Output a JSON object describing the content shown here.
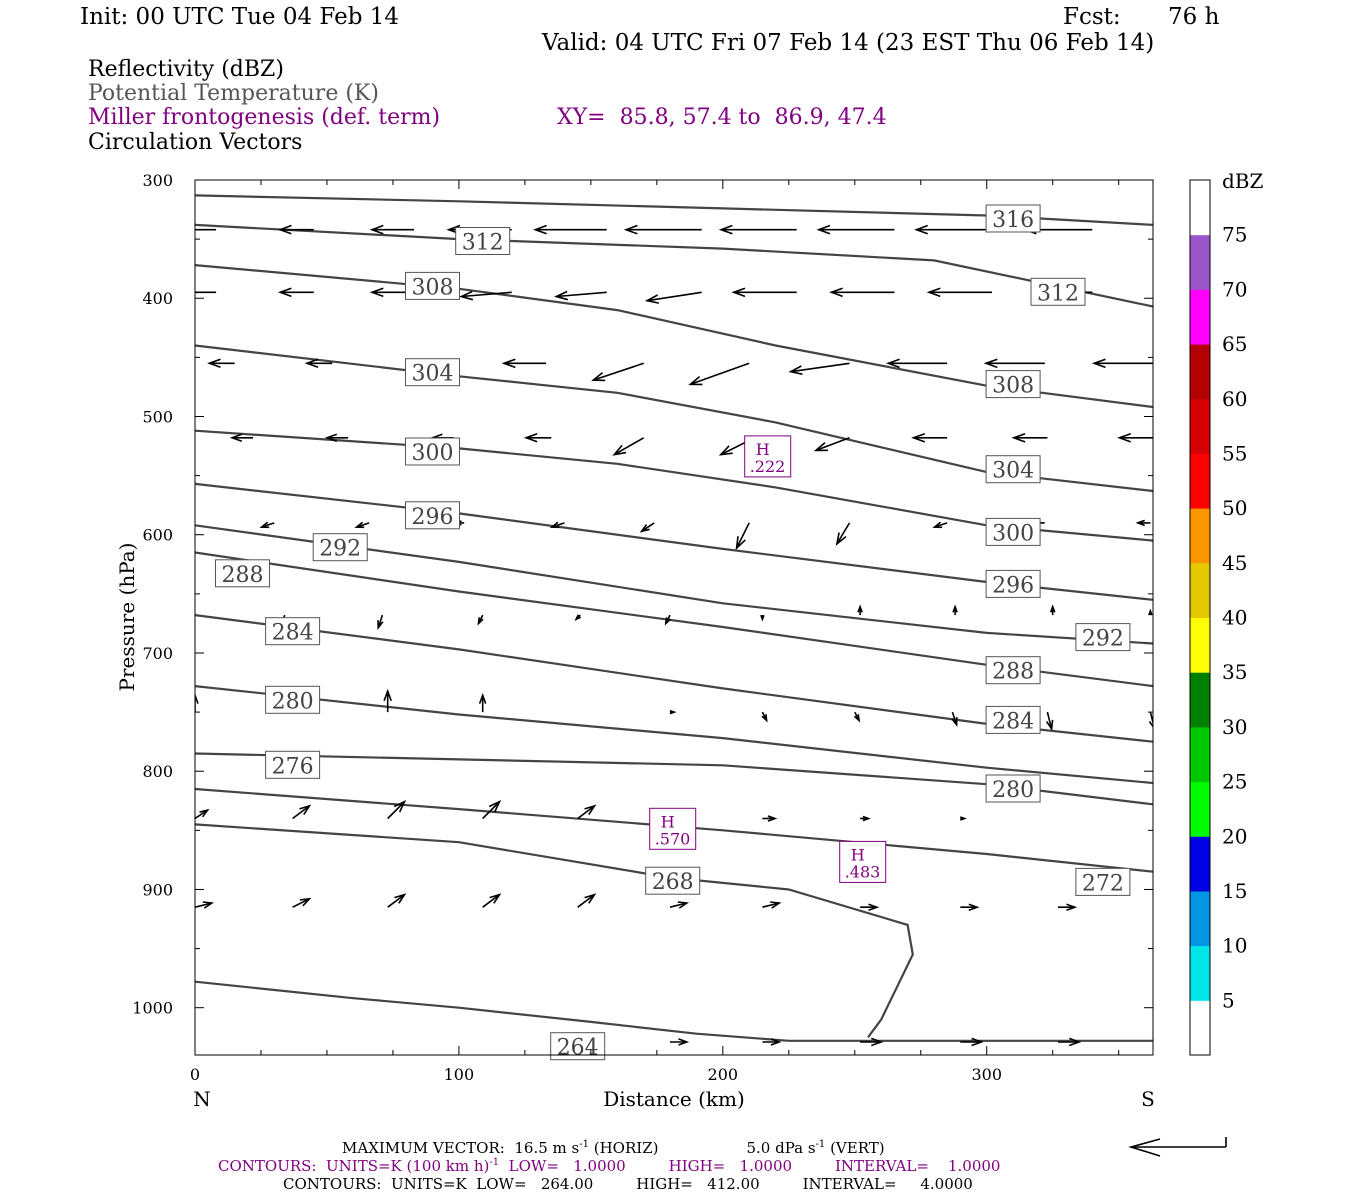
{
  "header": {
    "init": "Init: 00 UTC Tue 04 Feb 14",
    "fcst_label": "Fcst:",
    "fcst_value": "76 h",
    "valid": "Valid: 04 UTC Fri 07 Feb 14 (23 EST Thu 06 Feb 14)"
  },
  "legend": {
    "reflectivity": "Reflectivity (dBZ)",
    "theta": "Potential Temperature (K)",
    "frontogenesis": "Miller frontogenesis (def. term)",
    "xy": "XY=  85.8, 57.4 to  86.9, 47.4",
    "vectors": "Circulation Vectors"
  },
  "colors": {
    "theta_contour": "#444444",
    "frontogenesis": "#800080",
    "vectors": "#000000"
  },
  "colorbar": {
    "title": "dBZ",
    "labels": [
      "5",
      "10",
      "15",
      "20",
      "25",
      "30",
      "35",
      "40",
      "45",
      "50",
      "55",
      "60",
      "65",
      "70",
      "75"
    ],
    "colors": [
      "#ffffff",
      "#00e6e6",
      "#0096e6",
      "#0000e6",
      "#00fa00",
      "#00c800",
      "#008000",
      "#ffff00",
      "#e6c800",
      "#ff9600",
      "#ff0000",
      "#d70000",
      "#b40000",
      "#ff00ff",
      "#9955c9",
      "#ffffff"
    ]
  },
  "chart_data": {
    "type": "line",
    "xlabel": "Distance (km)",
    "ylabel": "Pressure (hPa)",
    "xlim": [
      0,
      363
    ],
    "ylim": [
      1040,
      300
    ],
    "x_ticks": [
      "0",
      "100",
      "200",
      "300"
    ],
    "y_ticks": [
      "300",
      "400",
      "500",
      "600",
      "700",
      "800",
      "900",
      "1000"
    ],
    "x_end_labels": {
      "left": "N",
      "right": "S"
    },
    "theta_contours": [
      {
        "label": "316",
        "x": [
          0,
          100,
          200,
          300,
          363
        ],
        "p": [
          313,
          318,
          324,
          330,
          338
        ]
      },
      {
        "label": "312",
        "x": [
          0,
          100,
          200,
          280,
          363
        ],
        "p": [
          338,
          350,
          358,
          368,
          407
        ]
      },
      {
        "label": "308",
        "x": [
          0,
          100,
          160,
          220,
          300,
          363
        ],
        "p": [
          372,
          392,
          410,
          440,
          474,
          492
        ]
      },
      {
        "label": "304",
        "x": [
          0,
          100,
          160,
          220,
          300,
          363
        ],
        "p": [
          440,
          466,
          480,
          505,
          547,
          563
        ]
      },
      {
        "label": "300",
        "x": [
          0,
          100,
          160,
          220,
          300,
          363
        ],
        "p": [
          512,
          527,
          540,
          560,
          592,
          605
        ]
      },
      {
        "label": "296",
        "x": [
          0,
          100,
          200,
          300,
          363
        ],
        "p": [
          557,
          582,
          612,
          640,
          655
        ]
      },
      {
        "label": "292",
        "x": [
          0,
          100,
          200,
          300,
          363
        ],
        "p": [
          592,
          623,
          658,
          683,
          692
        ]
      },
      {
        "label": "288",
        "x": [
          0,
          100,
          200,
          300,
          363
        ],
        "p": [
          615,
          648,
          678,
          710,
          728
        ]
      },
      {
        "label": "284",
        "x": [
          0,
          100,
          200,
          300,
          363
        ],
        "p": [
          668,
          697,
          730,
          760,
          775
        ]
      },
      {
        "label": "280",
        "x": [
          0,
          100,
          200,
          300,
          363
        ],
        "p": [
          728,
          752,
          772,
          797,
          810
        ]
      },
      {
        "label": "276",
        "x": [
          0,
          100,
          200,
          300,
          363
        ],
        "p": [
          785,
          790,
          795,
          811,
          828
        ]
      },
      {
        "label": "272",
        "x": [
          0,
          100,
          200,
          300,
          363
        ],
        "p": [
          815,
          832,
          850,
          870,
          885
        ]
      },
      {
        "label": "268",
        "x": [
          0,
          100,
          180,
          225,
          270,
          272,
          260,
          255
        ],
        "p": [
          845,
          860,
          890,
          900,
          930,
          955,
          1010,
          1025
        ]
      },
      {
        "label": "264",
        "x": [
          0,
          60,
          100,
          150,
          190,
          225,
          363
        ],
        "p": [
          978,
          992,
          1000,
          1012,
          1022,
          1028,
          1028
        ]
      }
    ],
    "contour_labels": [
      {
        "text": "316",
        "x": 310,
        "p": 333
      },
      {
        "text": "312",
        "x": 109,
        "p": 352
      },
      {
        "text": "312",
        "x": 327,
        "p": 395
      },
      {
        "text": "308",
        "x": 90,
        "p": 390
      },
      {
        "text": "308",
        "x": 310,
        "p": 473
      },
      {
        "text": "304",
        "x": 90,
        "p": 463
      },
      {
        "text": "304",
        "x": 310,
        "p": 545
      },
      {
        "text": "300",
        "x": 90,
        "p": 530
      },
      {
        "text": "300",
        "x": 310,
        "p": 598
      },
      {
        "text": "296",
        "x": 90,
        "p": 584
      },
      {
        "text": "296",
        "x": 310,
        "p": 642
      },
      {
        "text": "292",
        "x": 55,
        "p": 611
      },
      {
        "text": "292",
        "x": 344,
        "p": 687
      },
      {
        "text": "288",
        "x": 18,
        "p": 633
      },
      {
        "text": "288",
        "x": 310,
        "p": 715
      },
      {
        "text": "284",
        "x": 37,
        "p": 682
      },
      {
        "text": "284",
        "x": 310,
        "p": 757
      },
      {
        "text": "280",
        "x": 37,
        "p": 740
      },
      {
        "text": "280",
        "x": 310,
        "p": 815
      },
      {
        "text": "276",
        "x": 37,
        "p": 795
      },
      {
        "text": "272",
        "x": 344,
        "p": 894
      },
      {
        "text": "268",
        "x": 181,
        "p": 893
      },
      {
        "text": "264",
        "x": 145,
        "p": 1033
      }
    ],
    "frontogenesis_maxima": [
      {
        "label": "H",
        "value": ".222",
        "x": 217,
        "p": 535
      },
      {
        "label": "H",
        "value": ".570",
        "x": 181,
        "p": 850
      },
      {
        "label": "H",
        "value": ".483",
        "x": 253,
        "p": 878
      }
    ],
    "vector_rows": [
      {
        "p": 342,
        "x": [
          8,
          45,
          83,
          120,
          156,
          192,
          228,
          265,
          302,
          340
        ],
        "u": [
          -8,
          -8,
          -10,
          -15,
          -17,
          -18,
          -18,
          -18,
          -18,
          -16
        ],
        "w": [
          0,
          0,
          0,
          0,
          0,
          0,
          0,
          0,
          0,
          0
        ]
      },
      {
        "p": 395,
        "x": [
          8,
          45,
          83,
          120,
          156,
          192,
          228,
          265,
          302,
          340
        ],
        "u": [
          -8,
          -8,
          -10,
          -12,
          -12,
          -13,
          -15,
          -15,
          -15,
          -13
        ],
        "w": [
          0,
          0,
          0,
          -1,
          -1,
          -2,
          0,
          0,
          0,
          0
        ]
      },
      {
        "p": 455,
        "x": [
          15,
          52,
          95,
          133,
          170,
          210,
          248,
          285,
          322,
          363
        ],
        "u": [
          -6,
          -6,
          -8,
          -10,
          -12,
          -14,
          -14,
          -14,
          -14,
          -14
        ],
        "w": [
          0,
          0,
          0,
          0,
          -4,
          -5,
          -2,
          0,
          0,
          0
        ]
      },
      {
        "p": 518,
        "x": [
          22,
          58,
          98,
          135,
          170,
          212,
          248,
          285,
          323,
          363
        ],
        "u": [
          -5,
          -5,
          -5,
          -6,
          -7,
          -8,
          -8,
          -8,
          -8,
          -8
        ],
        "w": [
          0,
          0,
          0,
          0,
          -4,
          -4,
          -3,
          0,
          0,
          0
        ]
      },
      {
        "p": 590,
        "x": [
          30,
          66,
          102,
          140,
          174,
          210,
          248,
          285,
          322,
          362
        ],
        "u": [
          -3,
          -3,
          -2,
          -3,
          -3,
          -3,
          -3,
          -3,
          -3,
          -3
        ],
        "w": [
          -1,
          -1,
          0,
          -1,
          -2,
          -6,
          -5,
          -1,
          0,
          0
        ]
      },
      {
        "p": 668,
        "x": [
          34,
          71,
          109,
          146,
          180,
          215,
          252,
          288,
          325,
          362
        ],
        "u": [
          -1,
          -1,
          -1,
          -1,
          -1,
          0,
          0,
          0,
          0,
          0
        ],
        "w": [
          -3,
          -3,
          -2,
          -1,
          -2,
          -1,
          2,
          2,
          2,
          1
        ]
      },
      {
        "p": 750,
        "x": [
          0,
          37,
          73,
          109,
          180,
          215,
          250,
          287,
          323,
          362
        ],
        "u": [
          0,
          0,
          0,
          0,
          1,
          1,
          1,
          1,
          1,
          1
        ],
        "w": [
          4,
          5,
          5,
          4,
          0,
          -2,
          -2,
          -3,
          -4,
          -4
        ]
      },
      {
        "p": 840,
        "x": [
          0,
          37,
          73,
          109,
          145,
          180,
          215,
          252,
          290,
          327
        ],
        "u": [
          3,
          4,
          4,
          4,
          4,
          4,
          3,
          2,
          1,
          0
        ],
        "w": [
          2,
          3,
          4,
          4,
          3,
          2,
          0,
          0,
          0,
          0
        ]
      },
      {
        "p": 915,
        "x": [
          0,
          37,
          73,
          109,
          145,
          180,
          215,
          252,
          290,
          327
        ],
        "u": [
          4,
          4,
          4,
          4,
          4,
          4,
          4,
          4,
          4,
          4
        ],
        "w": [
          1,
          2,
          3,
          3,
          3,
          1,
          1,
          0,
          0,
          0
        ]
      },
      {
        "p": 1029,
        "x": [
          0,
          37,
          73,
          109,
          145,
          180,
          215,
          252,
          290,
          327
        ],
        "u": [
          0,
          0,
          0,
          0,
          0,
          4,
          4,
          5,
          5,
          5
        ],
        "w": [
          0,
          0,
          0,
          0,
          0,
          0,
          0,
          0,
          0,
          0
        ]
      }
    ]
  },
  "footer": {
    "max_vector": "MAXIMUM VECTOR:  16.5 m s",
    "max_vector_horiz": " (HORIZ)",
    "max_vector_vert": "5.0 dPa s",
    "max_vector_vert_end": " (VERT)",
    "exp": "-1",
    "contours_purple": "CONTOURS:  UNITS=K (100 km h)",
    "contours_purple_end": "  LOW=   1.0000         HIGH=   1.0000         INTERVAL=    1.0000",
    "contours_black": "CONTOURS:  UNITS=K  LOW=   264.00         HIGH=   412.00         INTERVAL=     4.0000"
  }
}
